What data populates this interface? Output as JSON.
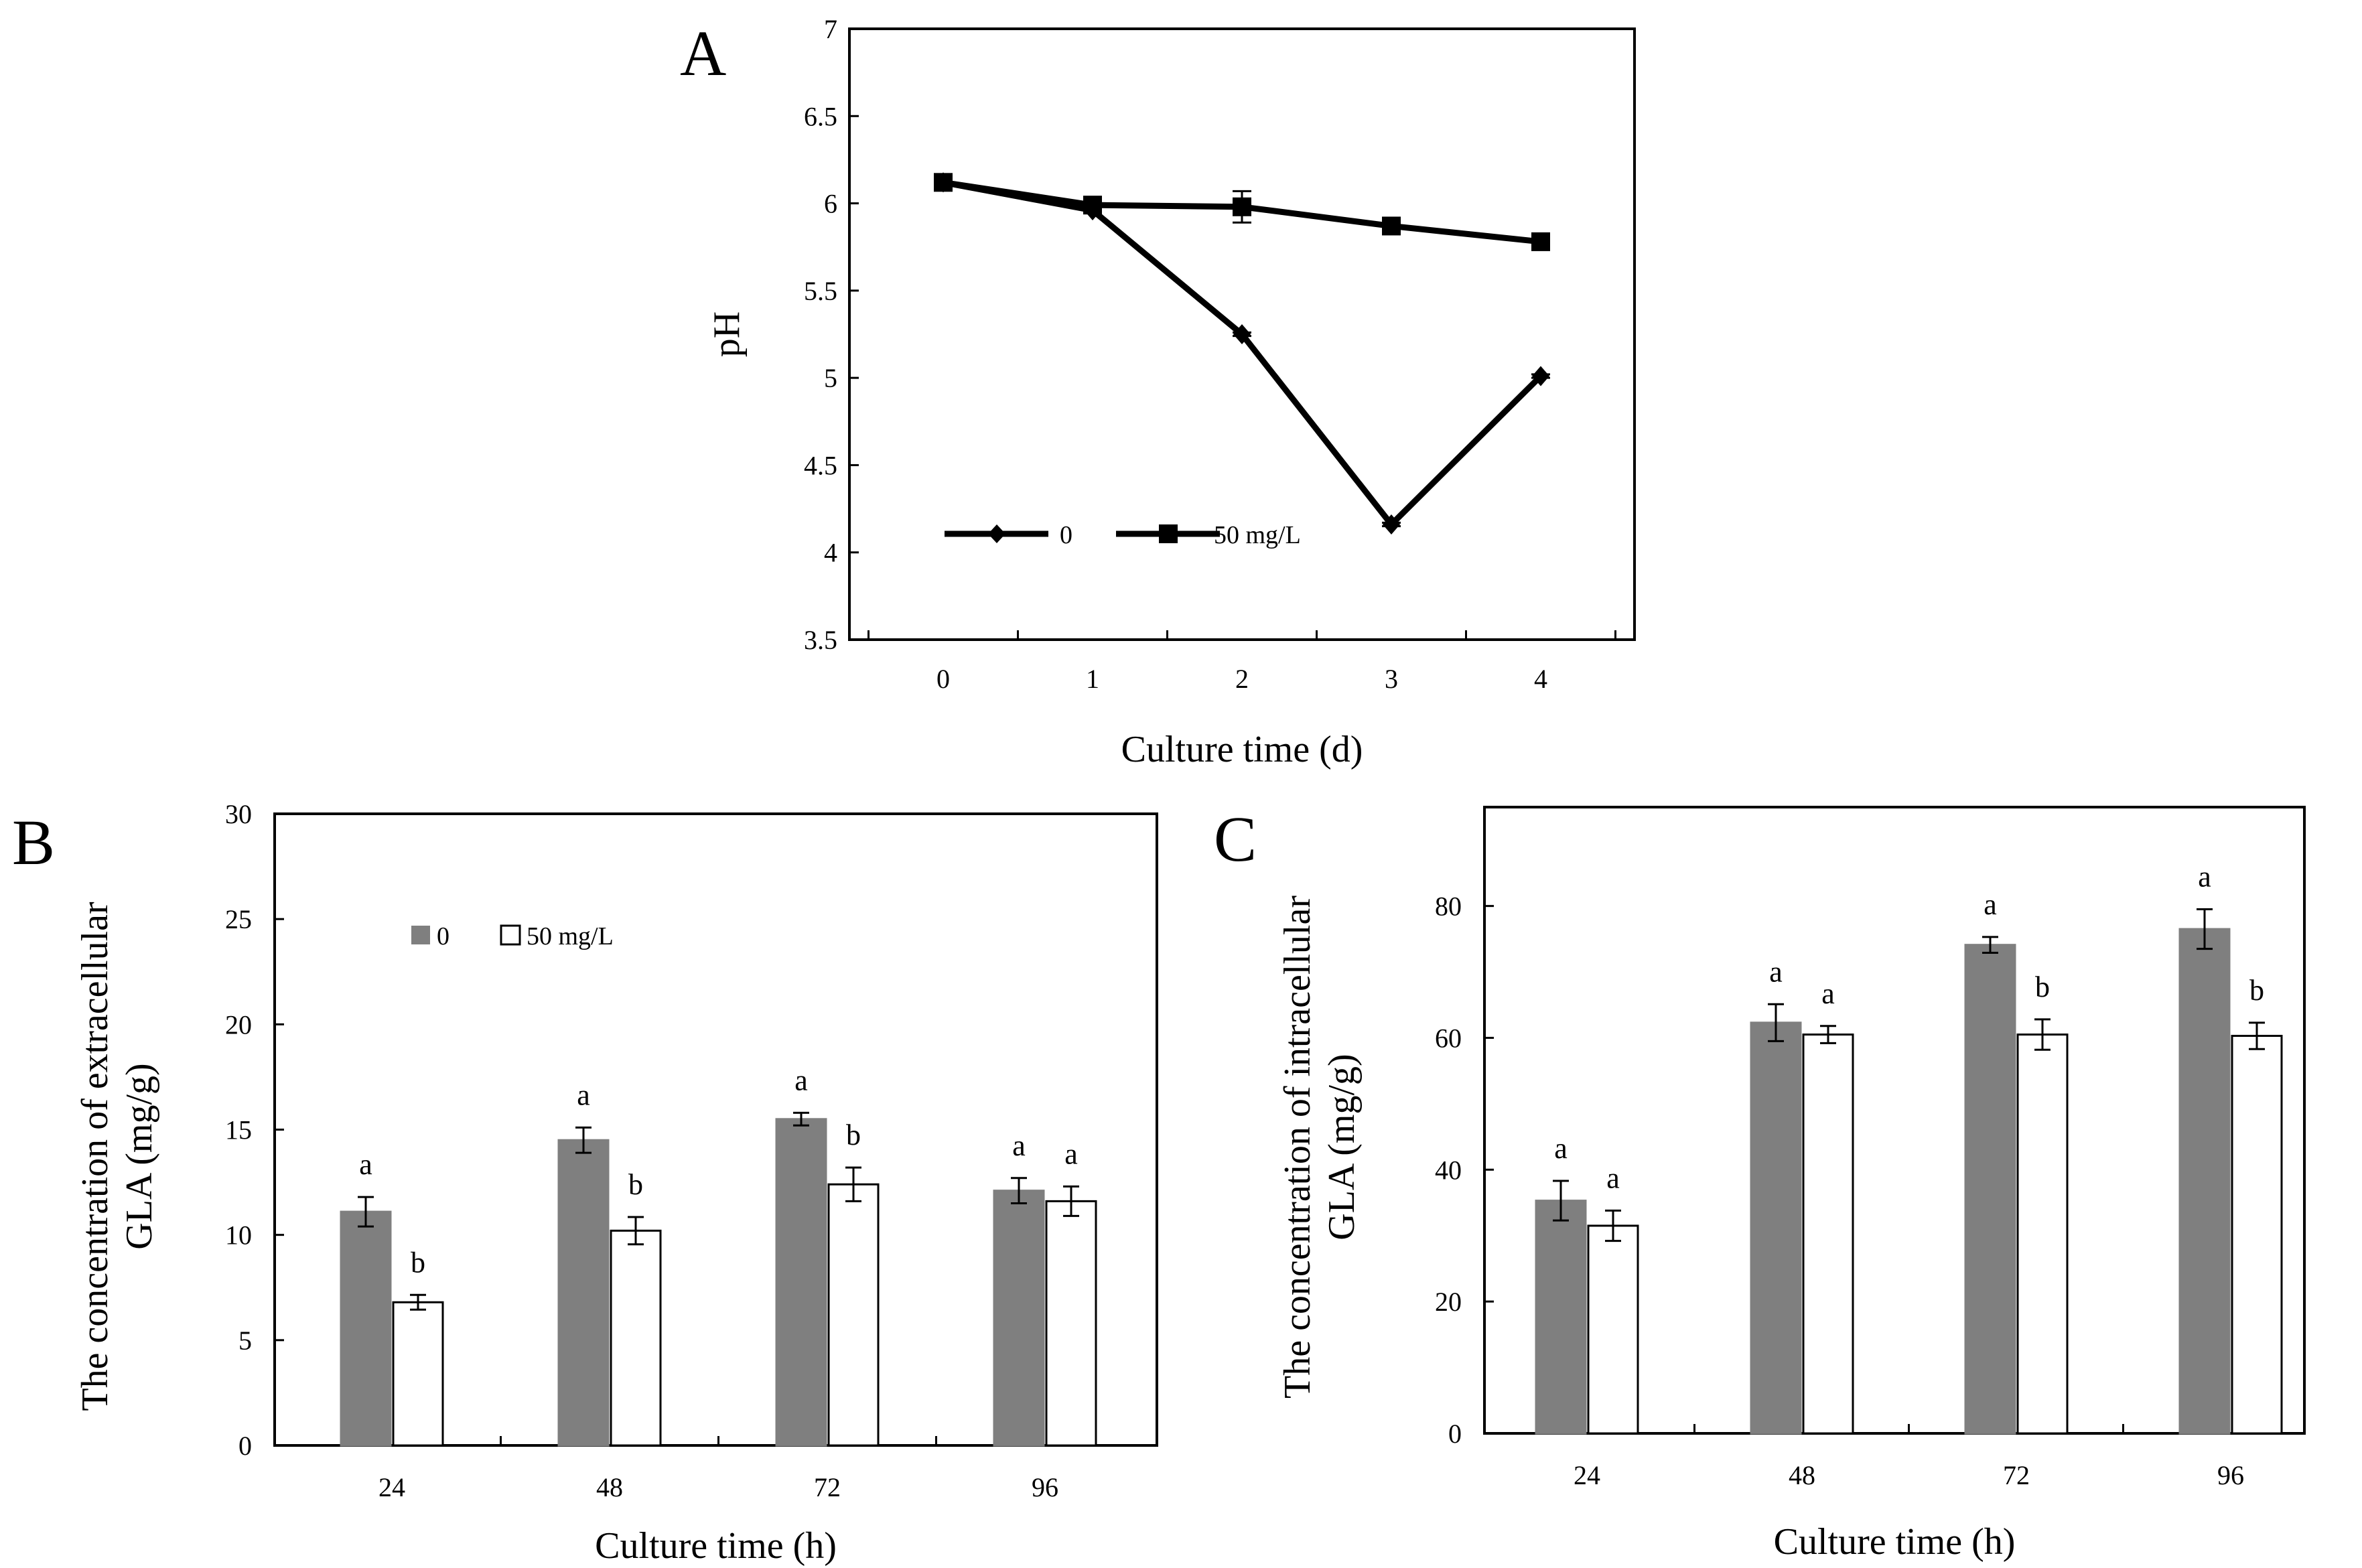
{
  "figure": {
    "panels": [
      "A",
      "B",
      "C"
    ],
    "colors": {
      "series_0": "#7f7f7f",
      "series_50": "#ffffff",
      "line": "#000000",
      "axis": "#000000"
    }
  },
  "chart_data": [
    {
      "id": "A",
      "panel_label": "A",
      "type": "line",
      "title": "",
      "xlabel": "Culture time (d)",
      "ylabel": "pH",
      "x": [
        0,
        1,
        2,
        3,
        4
      ],
      "x_tick_labels": [
        "0",
        "1",
        "2",
        "3",
        "4"
      ],
      "ylim": [
        3.5,
        7
      ],
      "y_ticks": [
        3.5,
        4,
        4.5,
        5,
        5.5,
        6,
        6.5,
        7
      ],
      "y_tick_labels": [
        "3.5",
        "4",
        "4.5",
        "5",
        "5.5",
        "6",
        "6.5",
        "7"
      ],
      "legend_position": "bottom-left",
      "series": [
        {
          "name": "0",
          "marker": "diamond",
          "values": [
            6.12,
            5.96,
            5.25,
            4.16,
            5.01
          ],
          "errors": [
            0.01,
            0.01,
            0.01,
            0.01,
            0.01
          ]
        },
        {
          "name": "50 mg/L",
          "marker": "square",
          "values": [
            6.12,
            5.99,
            5.98,
            5.87,
            5.78
          ],
          "errors": [
            0.01,
            0.02,
            0.09,
            0.02,
            0.02
          ]
        }
      ]
    },
    {
      "id": "B",
      "panel_label": "B",
      "type": "bar",
      "title": "",
      "xlabel": "Culture time (h)",
      "ylabel": [
        "The concentration  of extracellular",
        "GLA  (mg/g)"
      ],
      "categories": [
        "24",
        "48",
        "72",
        "96"
      ],
      "ylim": [
        0,
        30
      ],
      "y_ticks": [
        0,
        5,
        10,
        15,
        20,
        25,
        30
      ],
      "y_tick_labels": [
        "0",
        "5",
        "10",
        "15",
        "20",
        "25",
        "30"
      ],
      "legend_position": "top-left",
      "series": [
        {
          "name": "0",
          "values": [
            11.1,
            14.5,
            15.5,
            12.1
          ],
          "errors": [
            0.7,
            0.6,
            0.3,
            0.6
          ],
          "labels": [
            "a",
            "a",
            "a",
            "a"
          ]
        },
        {
          "name": "50 mg/L",
          "values": [
            6.8,
            10.2,
            12.4,
            11.6
          ],
          "errors": [
            0.35,
            0.65,
            0.8,
            0.7
          ],
          "labels": [
            "b",
            "b",
            "b",
            "a"
          ]
        }
      ]
    },
    {
      "id": "C",
      "panel_label": "C",
      "type": "bar",
      "title": "",
      "xlabel": "Culture time (h)",
      "ylabel": [
        "The concentration  of intracellular",
        "GLA  (mg/g)"
      ],
      "categories": [
        "24",
        "48",
        "72",
        "96"
      ],
      "ylim": [
        0,
        95
      ],
      "y_ticks": [
        0,
        20,
        40,
        60,
        80
      ],
      "y_tick_labels": [
        "0",
        "20",
        "40",
        "60",
        "80"
      ],
      "legend_position": "none",
      "series": [
        {
          "name": "0",
          "values": [
            35.3,
            62.3,
            74.1,
            76.5
          ],
          "errors": [
            3.0,
            2.8,
            1.2,
            3.0
          ],
          "labels": [
            "a",
            "a",
            "a",
            "a"
          ]
        },
        {
          "name": "50 mg/L",
          "values": [
            31.5,
            60.5,
            60.5,
            60.3
          ],
          "errors": [
            2.3,
            1.3,
            2.3,
            2.0
          ],
          "labels": [
            "a",
            "a",
            "b",
            "b"
          ]
        }
      ]
    }
  ]
}
